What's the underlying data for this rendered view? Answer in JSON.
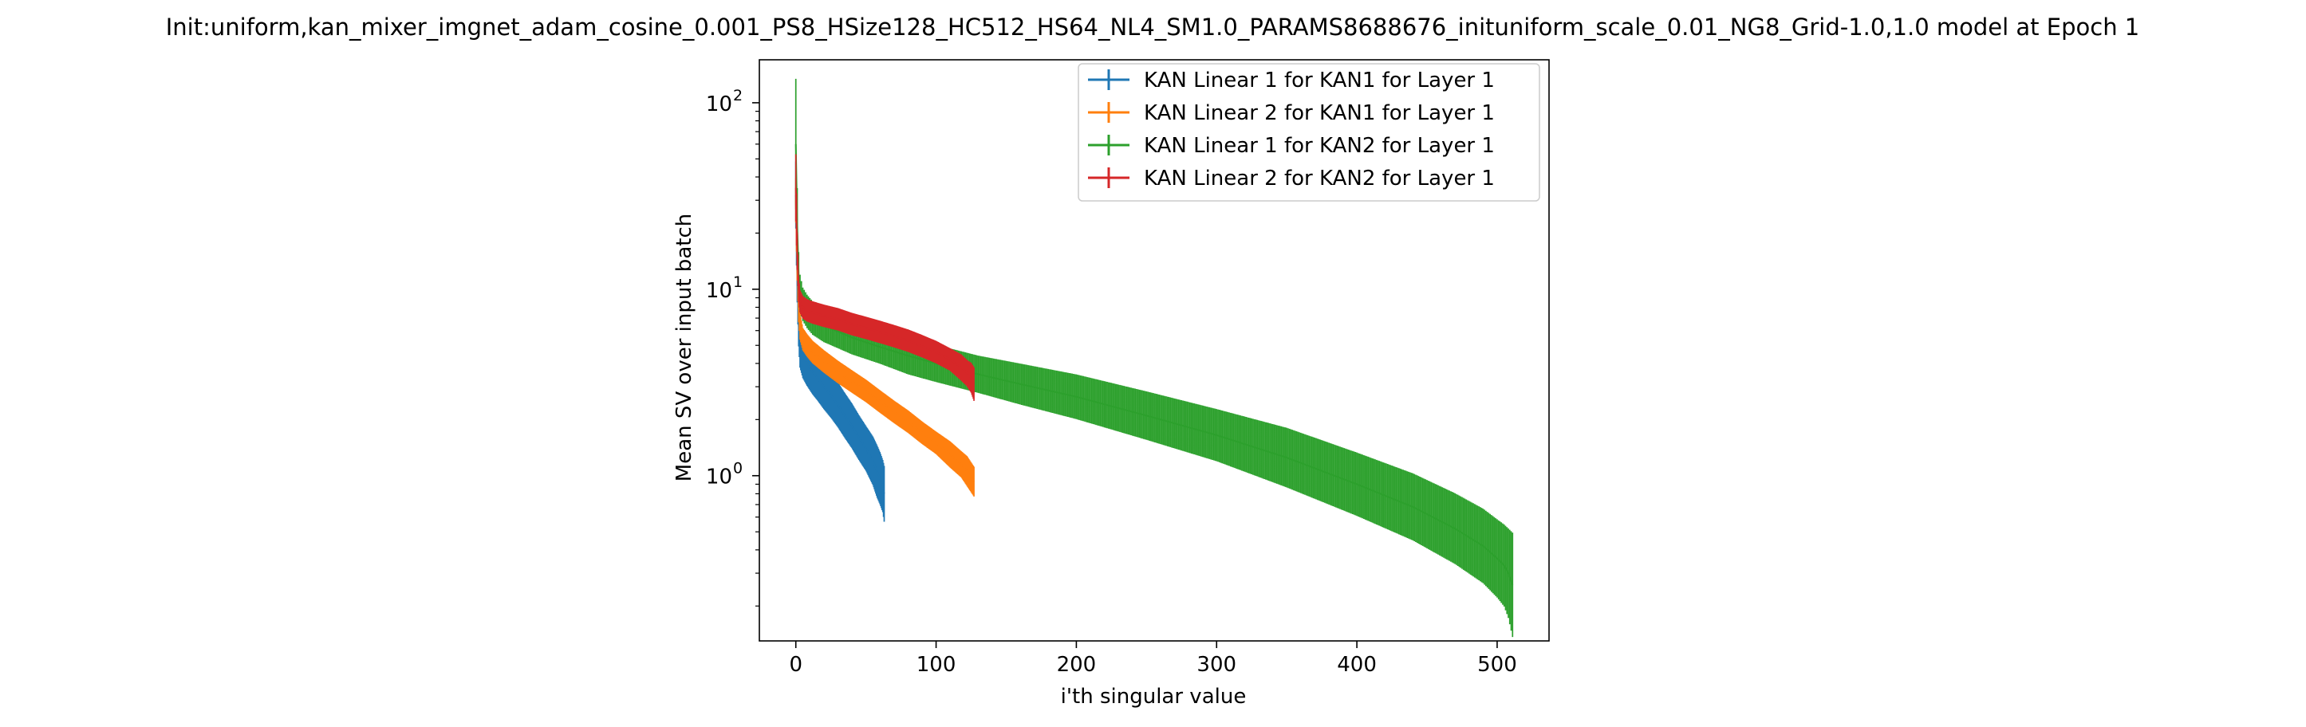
{
  "chart_data": {
    "type": "line",
    "title": "Init:uniform,kan_mixer_imgnet_adam_cosine_0.001_PS8_HSize128_HC512_HS64_NL4_SM1.0_PARAMS8688676_inituniform_scale_0.01_NG8_Grid-1.0,1.0 model at Epoch 1",
    "xlabel": "i'th singular value",
    "ylabel": "Mean SV over input batch",
    "xlim": [
      -26,
      537
    ],
    "ylim": [
      0.13,
      170
    ],
    "yscale": "log",
    "grid": false,
    "legend_position": "top-right",
    "x_ticks": [
      0,
      100,
      200,
      300,
      400,
      500
    ],
    "x_tick_labels": [
      "0",
      "100",
      "200",
      "300",
      "400",
      "500"
    ],
    "y_ticks": [
      1,
      10,
      100
    ],
    "y_tick_labels": [
      "10",
      "10",
      "10"
    ],
    "y_tick_exponents": [
      "0",
      "1",
      "2"
    ],
    "series": [
      {
        "name": "KAN Linear 1 for KAN1 for Layer 1",
        "color": "#1f77b4",
        "n": 64,
        "x": [
          0,
          1,
          2,
          3,
          5,
          8,
          12,
          16,
          20,
          25,
          30,
          35,
          40,
          45,
          50,
          55,
          58,
          60,
          62,
          63
        ],
        "y": [
          32,
          12,
          6.5,
          5.0,
          4.4,
          4.0,
          3.6,
          3.3,
          3.0,
          2.7,
          2.4,
          2.1,
          1.85,
          1.6,
          1.4,
          1.2,
          1.05,
          0.97,
          0.88,
          0.8
        ],
        "err": [
          0.18,
          0.15,
          0.12,
          0.12,
          0.12,
          0.12,
          0.12,
          0.12,
          0.12,
          0.12,
          0.12,
          0.12,
          0.12,
          0.12,
          0.12,
          0.13,
          0.14,
          0.14,
          0.14,
          0.15
        ]
      },
      {
        "name": "KAN Linear 2 for KAN1 for Layer 1",
        "color": "#ff7f0e",
        "n": 128,
        "x": [
          0,
          1,
          2,
          3,
          5,
          8,
          12,
          20,
          30,
          40,
          50,
          60,
          70,
          80,
          90,
          100,
          110,
          118,
          122,
          125,
          127
        ],
        "y": [
          30,
          14,
          8.0,
          6.3,
          5.4,
          5.0,
          4.6,
          4.1,
          3.6,
          3.2,
          2.85,
          2.5,
          2.2,
          1.95,
          1.7,
          1.5,
          1.3,
          1.15,
          1.06,
          0.98,
          0.93
        ],
        "err": [
          0.12,
          0.1,
          0.08,
          0.07,
          0.06,
          0.06,
          0.06,
          0.06,
          0.06,
          0.06,
          0.06,
          0.06,
          0.06,
          0.06,
          0.06,
          0.06,
          0.07,
          0.07,
          0.08,
          0.08,
          0.08
        ]
      },
      {
        "name": "KAN Linear 1 for KAN2 for Layer 1",
        "color": "#2ca02c",
        "n": 512,
        "x": [
          0,
          1,
          2,
          3,
          5,
          8,
          12,
          20,
          40,
          60,
          80,
          100,
          130,
          160,
          200,
          250,
          300,
          350,
          400,
          440,
          470,
          490,
          500,
          505,
          508,
          511
        ],
        "y": [
          60,
          22,
          12,
          9.5,
          8.3,
          7.6,
          7.0,
          6.4,
          5.5,
          4.9,
          4.4,
          4.0,
          3.5,
          3.1,
          2.65,
          2.1,
          1.65,
          1.25,
          0.9,
          0.68,
          0.52,
          0.42,
          0.36,
          0.33,
          0.3,
          0.26
        ],
        "err": [
          0.35,
          0.2,
          0.12,
          0.1,
          0.09,
          0.09,
          0.09,
          0.09,
          0.09,
          0.09,
          0.1,
          0.1,
          0.1,
          0.11,
          0.12,
          0.13,
          0.14,
          0.16,
          0.17,
          0.18,
          0.19,
          0.2,
          0.21,
          0.22,
          0.24,
          0.28
        ]
      },
      {
        "name": "KAN Linear 2 for KAN2 for Layer 1",
        "color": "#d62728",
        "n": 128,
        "x": [
          0,
          1,
          2,
          3,
          5,
          8,
          12,
          20,
          30,
          40,
          50,
          60,
          70,
          80,
          90,
          100,
          110,
          118,
          122,
          125,
          127
        ],
        "y": [
          35,
          16,
          10,
          8.6,
          8.0,
          7.7,
          7.5,
          7.2,
          6.9,
          6.5,
          6.2,
          5.9,
          5.6,
          5.3,
          4.95,
          4.6,
          4.2,
          3.8,
          3.55,
          3.35,
          3.1
        ],
        "err": [
          0.18,
          0.1,
          0.07,
          0.06,
          0.06,
          0.06,
          0.06,
          0.06,
          0.06,
          0.06,
          0.06,
          0.06,
          0.06,
          0.06,
          0.06,
          0.06,
          0.06,
          0.07,
          0.07,
          0.08,
          0.09
        ]
      }
    ]
  }
}
